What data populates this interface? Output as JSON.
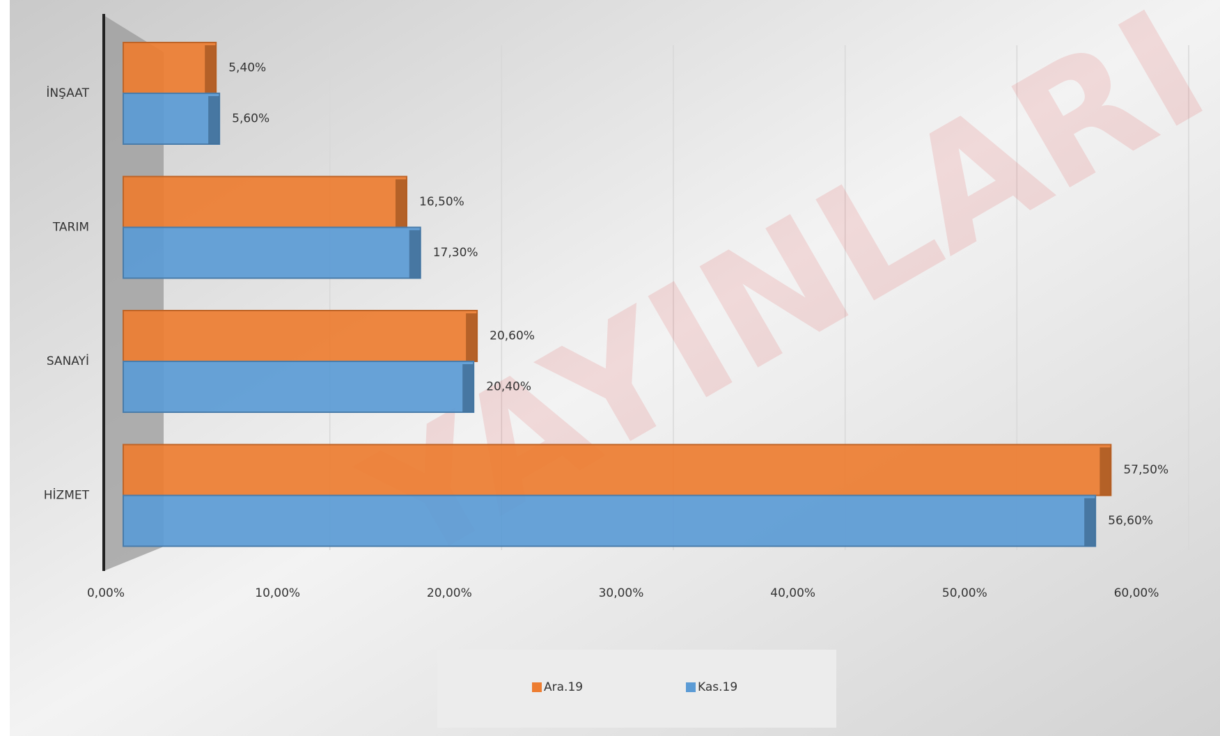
{
  "chart_data": {
    "type": "bar",
    "orientation": "horizontal",
    "categories": [
      "İNŞAAT",
      "TARIM",
      "SANAYİ",
      "HİZMET"
    ],
    "series": [
      {
        "name": "Ara.19",
        "color": "#ed7d31",
        "values": [
          5.4,
          16.5,
          20.6,
          57.5
        ],
        "value_labels": [
          "5,40%",
          "16,50%",
          "20,60%",
          "57,50%"
        ]
      },
      {
        "name": "Kas.19",
        "color": "#5b9bd5",
        "values": [
          5.6,
          17.3,
          20.4,
          56.6
        ],
        "value_labels": [
          "5,60%",
          "17,30%",
          "20,40%",
          "56,60%"
        ]
      }
    ],
    "xlim": [
      0,
      60
    ],
    "xticks": [
      {
        "value": 0,
        "label": "0,00%"
      },
      {
        "value": 10,
        "label": "10,00%"
      },
      {
        "value": 20,
        "label": "20,00%"
      },
      {
        "value": 30,
        "label": "30,00%"
      },
      {
        "value": 40,
        "label": "40,00%"
      },
      {
        "value": 50,
        "label": "50,00%"
      },
      {
        "value": 60,
        "label": "60,00%"
      }
    ],
    "grid": true,
    "legend": "bottom",
    "watermark": "YAYINLARI"
  }
}
